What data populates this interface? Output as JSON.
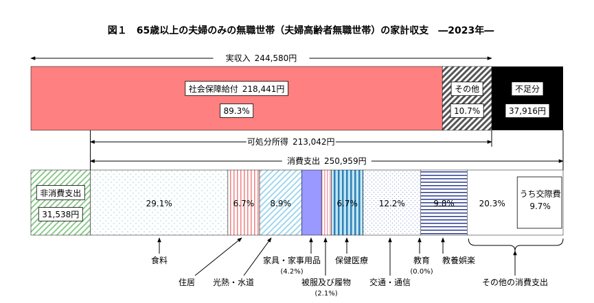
{
  "title": "図１　65歳以上の夫婦のみの無職世帯（夫婦高齢者無職世帯）の家計収支　―2023年―",
  "income": {
    "label": "実収入",
    "value": 244580,
    "value_label": "244,580円"
  },
  "income_items": [
    {
      "label": "社会保障給付",
      "value": 218441,
      "value_label": "218,441円",
      "percent": 89.3,
      "percent_label": "89.3%"
    },
    {
      "label": "その他",
      "percent": 10.7,
      "percent_label": "10.7%"
    }
  ],
  "deficit": {
    "label": "不足分",
    "value": 37916,
    "value_label": "37,916円"
  },
  "disposable": {
    "label": "可処分所得",
    "value": 213042,
    "value_label": "213,042円"
  },
  "consumption": {
    "label": "消費支出",
    "value": 250959,
    "value_label": "250,959円"
  },
  "non_consumption": {
    "label": "非消費支出",
    "value": 31538,
    "value_label": "31,538円"
  },
  "categories": [
    {
      "label": "食料",
      "percent": 29.1,
      "percent_label": "29.1%"
    },
    {
      "label": "住居",
      "percent": 6.7,
      "percent_label": "6.7%"
    },
    {
      "label": "光熱・水道",
      "percent": 8.9,
      "percent_label": "8.9%"
    },
    {
      "label": "家具・家事用品",
      "percent": 4.2,
      "percent_note": "(4.2%)"
    },
    {
      "label": "被服及び履物",
      "percent": 2.1,
      "percent_note": "(2.1%)"
    },
    {
      "label": "保健医療",
      "percent": 6.7,
      "percent_label": "6.7%"
    },
    {
      "label": "交通・通信",
      "percent": 12.2,
      "percent_label": "12.2%"
    },
    {
      "label": "教育",
      "percent": 0.0,
      "percent_note": "(0.0%)"
    },
    {
      "label": "教養娯楽",
      "percent": 9.8,
      "percent_label": "9.8%"
    },
    {
      "label": "その他の消費支出",
      "percent": 20.3,
      "percent_label": "20.3%",
      "sub": {
        "label": "うち交際費",
        "percent": 9.7,
        "percent_label": "9.7%"
      }
    }
  ]
}
